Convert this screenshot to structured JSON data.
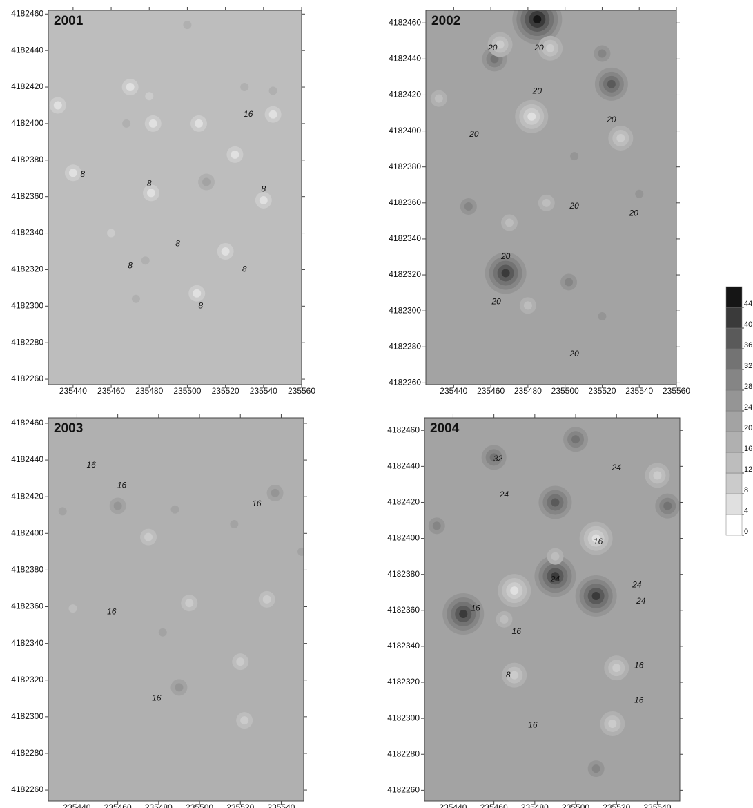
{
  "chart_data": [
    {
      "type": "contour",
      "title": "2001",
      "background": 12,
      "xlim": [
        235427,
        235560
      ],
      "ylim": [
        4182257,
        4182462
      ],
      "xticks": [
        235440,
        235460,
        235480,
        235500,
        235520,
        235540,
        235560
      ],
      "yticks": [
        4182260,
        4182280,
        4182300,
        4182320,
        4182340,
        4182360,
        4182380,
        4182400,
        4182420,
        4182440,
        4182460
      ],
      "spots": {
        "x": [
          235500,
          235530,
          235545,
          235480,
          235470,
          235482,
          235506,
          235525,
          235440,
          235481,
          235540,
          235520,
          235505,
          235510,
          235468,
          235478,
          235460,
          235545,
          235432,
          235473
        ],
        "y": [
          4182454,
          4182420,
          4182418,
          4182415,
          4182420,
          4182400,
          4182400,
          4182383,
          4182373,
          4182362,
          4182358,
          4182330,
          4182307,
          4182368,
          4182400,
          4182325,
          4182340,
          4182405,
          4182410,
          4182304
        ],
        "values": [
          16,
          16,
          16,
          8,
          4,
          4,
          4,
          4,
          4,
          4,
          4,
          4,
          4,
          20,
          16,
          16,
          8,
          4,
          4,
          16
        ]
      },
      "labels": {
        "x": [
          235532,
          235445,
          235480,
          235540,
          235495,
          235470,
          235530,
          235507
        ],
        "y": [
          4182405,
          4182372,
          4182367,
          4182364,
          4182334,
          4182322,
          4182320,
          4182300
        ],
        "values": [
          16,
          8,
          8,
          8,
          8,
          8,
          8,
          8
        ]
      }
    },
    {
      "type": "contour",
      "title": "2002",
      "background": 20,
      "xlim": [
        235425,
        235560
      ],
      "ylim": [
        4182259,
        4182467
      ],
      "xticks": [
        235440,
        235460,
        235480,
        235500,
        235520,
        235540,
        235560
      ],
      "yticks": [
        4182260,
        4182280,
        4182300,
        4182320,
        4182340,
        4182360,
        4182380,
        4182400,
        4182420,
        4182440,
        4182460
      ],
      "spots": {
        "x": [
          235485,
          235462,
          235525,
          235520,
          235468,
          235502,
          235482,
          235492,
          235465,
          235530,
          235470,
          235490,
          235432,
          235540,
          235448,
          235520,
          235505,
          235480
        ],
        "y": [
          4182462,
          4182440,
          4182426,
          4182443,
          4182321,
          4182316,
          4182408,
          4182446,
          4182448,
          4182396,
          4182349,
          4182360,
          4182418,
          4182365,
          4182358,
          4182297,
          4182386,
          4182303
        ],
        "values": [
          44,
          32,
          36,
          28,
          40,
          28,
          4,
          8,
          8,
          8,
          12,
          12,
          12,
          24,
          28,
          24,
          24,
          12
        ]
      },
      "labels": {
        "x": [
          235461,
          235486,
          235485,
          235525,
          235451,
          235505,
          235537,
          235468,
          235463,
          235505
        ],
        "y": [
          4182446,
          4182446,
          4182422,
          4182406,
          4182398,
          4182358,
          4182354,
          4182330,
          4182305,
          4182276
        ],
        "values": [
          20,
          20,
          20,
          20,
          20,
          20,
          20,
          20,
          20,
          20
        ]
      }
    },
    {
      "type": "contour",
      "title": "2003",
      "background": 16,
      "xlim": [
        235426,
        235551
      ],
      "ylim": [
        4182254,
        4182463
      ],
      "xticks": [
        235440,
        235460,
        235480,
        235500,
        235520,
        235540
      ],
      "yticks": [
        4182260,
        4182280,
        4182300,
        4182320,
        4182340,
        4182360,
        4182380,
        4182400,
        4182420,
        4182440,
        4182460
      ],
      "spots": {
        "x": [
          235460,
          235537,
          235490,
          235482,
          235517,
          235433,
          235522,
          235533,
          235495,
          235475,
          235438,
          235520,
          235550,
          235488
        ],
        "y": [
          4182415,
          4182422,
          4182316,
          4182346,
          4182405,
          4182412,
          4182298,
          4182364,
          4182362,
          4182398,
          4182359,
          4182330,
          4182390,
          4182413
        ],
        "values": [
          24,
          24,
          24,
          20,
          20,
          20,
          8,
          8,
          8,
          8,
          12,
          8,
          20,
          20
        ]
      },
      "labels": {
        "x": [
          235447,
          235462,
          235528,
          235457,
          235479
        ],
        "y": [
          4182437,
          4182426,
          4182416,
          4182357,
          4182310
        ],
        "values": [
          16,
          16,
          16,
          16,
          16
        ]
      }
    },
    {
      "type": "contour",
      "title": "2004",
      "background": 20,
      "xlim": [
        235426,
        235551
      ],
      "ylim": [
        4182254,
        4182467
      ],
      "xticks": [
        235440,
        235460,
        235480,
        235500,
        235520,
        235540
      ],
      "yticks": [
        4182260,
        4182280,
        4182300,
        4182320,
        4182340,
        4182360,
        4182380,
        4182400,
        4182420,
        4182440,
        4182460
      ],
      "spots": {
        "x": [
          235460,
          235500,
          235490,
          235445,
          235490,
          235510,
          235510,
          235545,
          235432,
          235470,
          235510,
          235540,
          235520,
          235518,
          235470,
          235465,
          235490
        ],
        "y": [
          4182445,
          4182455,
          4182420,
          4182358,
          4182379,
          4182368,
          4182272,
          4182418,
          4182407,
          4182371,
          4182400,
          4182435,
          4182328,
          4182297,
          4182324,
          4182355,
          4182390
        ],
        "values": [
          32,
          32,
          36,
          40,
          40,
          40,
          28,
          32,
          28,
          4,
          4,
          8,
          8,
          8,
          8,
          12,
          12
        ]
      },
      "labels": {
        "x": [
          235462,
          235520,
          235465,
          235511,
          235530,
          235490,
          235532,
          235451,
          235471,
          235531,
          235467,
          235531,
          235479
        ],
        "y": [
          4182444,
          4182439,
          4182424,
          4182398,
          4182374,
          4182377,
          4182365,
          4182361,
          4182348,
          4182329,
          4182324,
          4182310,
          4182296
        ],
        "values": [
          32,
          24,
          24,
          16,
          24,
          24,
          24,
          16,
          16,
          16,
          8,
          16,
          16
        ]
      }
    }
  ],
  "colorbar": {
    "levels": [
      0,
      4,
      8,
      12,
      16,
      20,
      24,
      28,
      32,
      36,
      40,
      44,
      48
    ],
    "ticks": [
      0,
      4,
      8,
      12,
      16,
      20,
      24,
      28,
      32,
      36,
      40,
      44
    ],
    "colors": [
      "#ffffff",
      "#e0e0e0",
      "#cbcbcb",
      "#bdbdbd",
      "#b0b0b0",
      "#a3a3a3",
      "#959595",
      "#858585",
      "#737373",
      "#5a5a5a",
      "#3a3a3a",
      "#151515"
    ]
  }
}
